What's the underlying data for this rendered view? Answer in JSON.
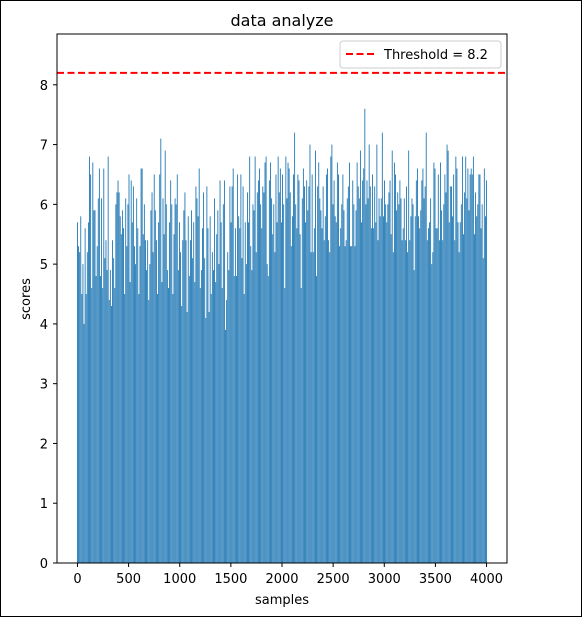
{
  "chart_data": {
    "type": "bar",
    "title": "data analyze",
    "xlabel": "samples",
    "ylabel": "scores",
    "xlim": [
      -200,
      4200
    ],
    "ylim": [
      0,
      8.85
    ],
    "xticks": [
      0,
      500,
      1000,
      1500,
      2000,
      2500,
      3000,
      3500,
      4000
    ],
    "yticks": [
      0,
      1,
      2,
      3,
      4,
      5,
      6,
      7,
      8
    ],
    "bar_color": "#1f77b4",
    "series": [
      {
        "x_start": 0,
        "x_end": 4000,
        "x_step": 20,
        "values": [
          5.7,
          5.3,
          5.2,
          5.8,
          4.5,
          5.0,
          4.0,
          5.6,
          4.5,
          5.2,
          5.7,
          6.8,
          6.5,
          4.6,
          6.7,
          5.9,
          5.9,
          4.8,
          5.3,
          6.1,
          6.6,
          4.8,
          6.1,
          4.6,
          6.6,
          5.1,
          5.4,
          4.9,
          6.8,
          4.4,
          4.9,
          4.3,
          5.4,
          5.1,
          4.6,
          6.0,
          6.2,
          6.4,
          6.2,
          5.8,
          5.5,
          5.9,
          5.6,
          4.5,
          6.1,
          5.3,
          6.0,
          6.5,
          4.7,
          6.4,
          5.7,
          6.3,
          5.3,
          5.0,
          6.1,
          5.6,
          4.5,
          5.3,
          6.6,
          6.6,
          5.5,
          6.0,
          5.4,
          4.9,
          5.4,
          4.4,
          5.0,
          5.9,
          6.2,
          5.2,
          6.5,
          5.9,
          5.4,
          4.5,
          5.7,
          6.5,
          7.1,
          4.7,
          6.1,
          5.5,
          6.9,
          6.0,
          4.9,
          4.6,
          5.7,
          6.4,
          6.0,
          4.5,
          5.5,
          6.1,
          6.0,
          6.5,
          4.9,
          5.7,
          5.2,
          4.3,
          5.4,
          5.9,
          6.2,
          5.4,
          4.2,
          5.8,
          4.8,
          5.4,
          5.9,
          5.1,
          5.7,
          4.7,
          6.3,
          6.1,
          5.8,
          6.6,
          4.6,
          4.9,
          5.6,
          6.2,
          5.1,
          4.1,
          6.3,
          5.6,
          4.2,
          5.8,
          4.5,
          5.2,
          4.9,
          6.1,
          4.7,
          5.5,
          5.9,
          5.0,
          6.4,
          5.7,
          4.6,
          6.0,
          6.4,
          3.9,
          4.4,
          5.2,
          4.9,
          6.3,
          5.7,
          6.3,
          6.6,
          4.8,
          5.6,
          4.8,
          6.5,
          5.8,
          5.6,
          6.5,
          5.1,
          6.3,
          4.5,
          5.7,
          5.0,
          6.2,
          5.7,
          6.8,
          5.3,
          4.9,
          6.0,
          5.9,
          6.8,
          5.2,
          6.2,
          6.4,
          6.6,
          6.0,
          5.6,
          6.3,
          6.2,
          6.7,
          6.8,
          5.0,
          4.8,
          6.4,
          6.7,
          6.1,
          5.5,
          6.0,
          5.2,
          6.5,
          5.7,
          6.8,
          6.2,
          6.6,
          5.7,
          6.5,
          6.0,
          4.6,
          6.8,
          6.1,
          6.7,
          6.6,
          6.2,
          5.3,
          5.8,
          6.5,
          7.2,
          6.0,
          5.6,
          6.5,
          6.4,
          5.5,
          4.6,
          6.1,
          6.6,
          6.3,
          5.7,
          6.4,
          5.9,
          6.3,
          7.0,
          5.2,
          6.5,
          5.2,
          5.6,
          6.9,
          4.8,
          6.3,
          6.7,
          6.1,
          5.9,
          5.6,
          6.3,
          5.4,
          5.8,
          6.5,
          6.6,
          5.4,
          5.2,
          6.8,
          7.0,
          6.0,
          6.4,
          5.8,
          5.7,
          6.7,
          6.5,
          5.3,
          5.6,
          6.0,
          6.5,
          5.9,
          5.3,
          5.4,
          6.1,
          6.3,
          6.7,
          5.3,
          5.3,
          6.4,
          6.0,
          5.3,
          5.9,
          6.7,
          6.3,
          6.1,
          6.9,
          5.7,
          6.4,
          6.6,
          7.6,
          6.0,
          6.4,
          6.1,
          7.0,
          6.3,
          5.6,
          6.5,
          5.6,
          6.3,
          5.7,
          7.0,
          5.4,
          6.1,
          5.8,
          6.1,
          7.2,
          5.8,
          6.4,
          6.0,
          5.7,
          6.0,
          6.2,
          6.4,
          5.5,
          6.9,
          5.2,
          6.7,
          6.5,
          5.9,
          6.2,
          6.0,
          6.4,
          6.1,
          5.4,
          5.6,
          6.1,
          5.4,
          6.3,
          5.2,
          6.9,
          5.4,
          5.8,
          6.1,
          6.0,
          4.9,
          5.8,
          6.4,
          6.6,
          5.8,
          5.6,
          5.9,
          6.4,
          6.6,
          6.1,
          6.3,
          7.2,
          5.4,
          5.6,
          5.7,
          6.1,
          5.0,
          5.2,
          6.7,
          6.6,
          5.6,
          5.6,
          6.5,
          5.4,
          6.7,
          5.9,
          5.4,
          6.0,
          6.5,
          6.2,
          7.0,
          6.9,
          5.7,
          6.3,
          6.3,
          5.8,
          6.5,
          5.4,
          6.8,
          6.6,
          5.7,
          5.2,
          5.7,
          6.0,
          6.8,
          5.5,
          6.2,
          6.8,
          6.1,
          6.6,
          5.9,
          6.5,
          6.6,
          6.5,
          6.8,
          5.5,
          6.2,
          5.8,
          6.0,
          6.5,
          6.5,
          5.6,
          6.0,
          5.1,
          6.6,
          5.8,
          6.4
        ]
      }
    ],
    "threshold": {
      "value": 8.2,
      "color": "#ff0000",
      "label": "Threshold = 8.2"
    },
    "legend_position": "top-right",
    "grid": false
  }
}
